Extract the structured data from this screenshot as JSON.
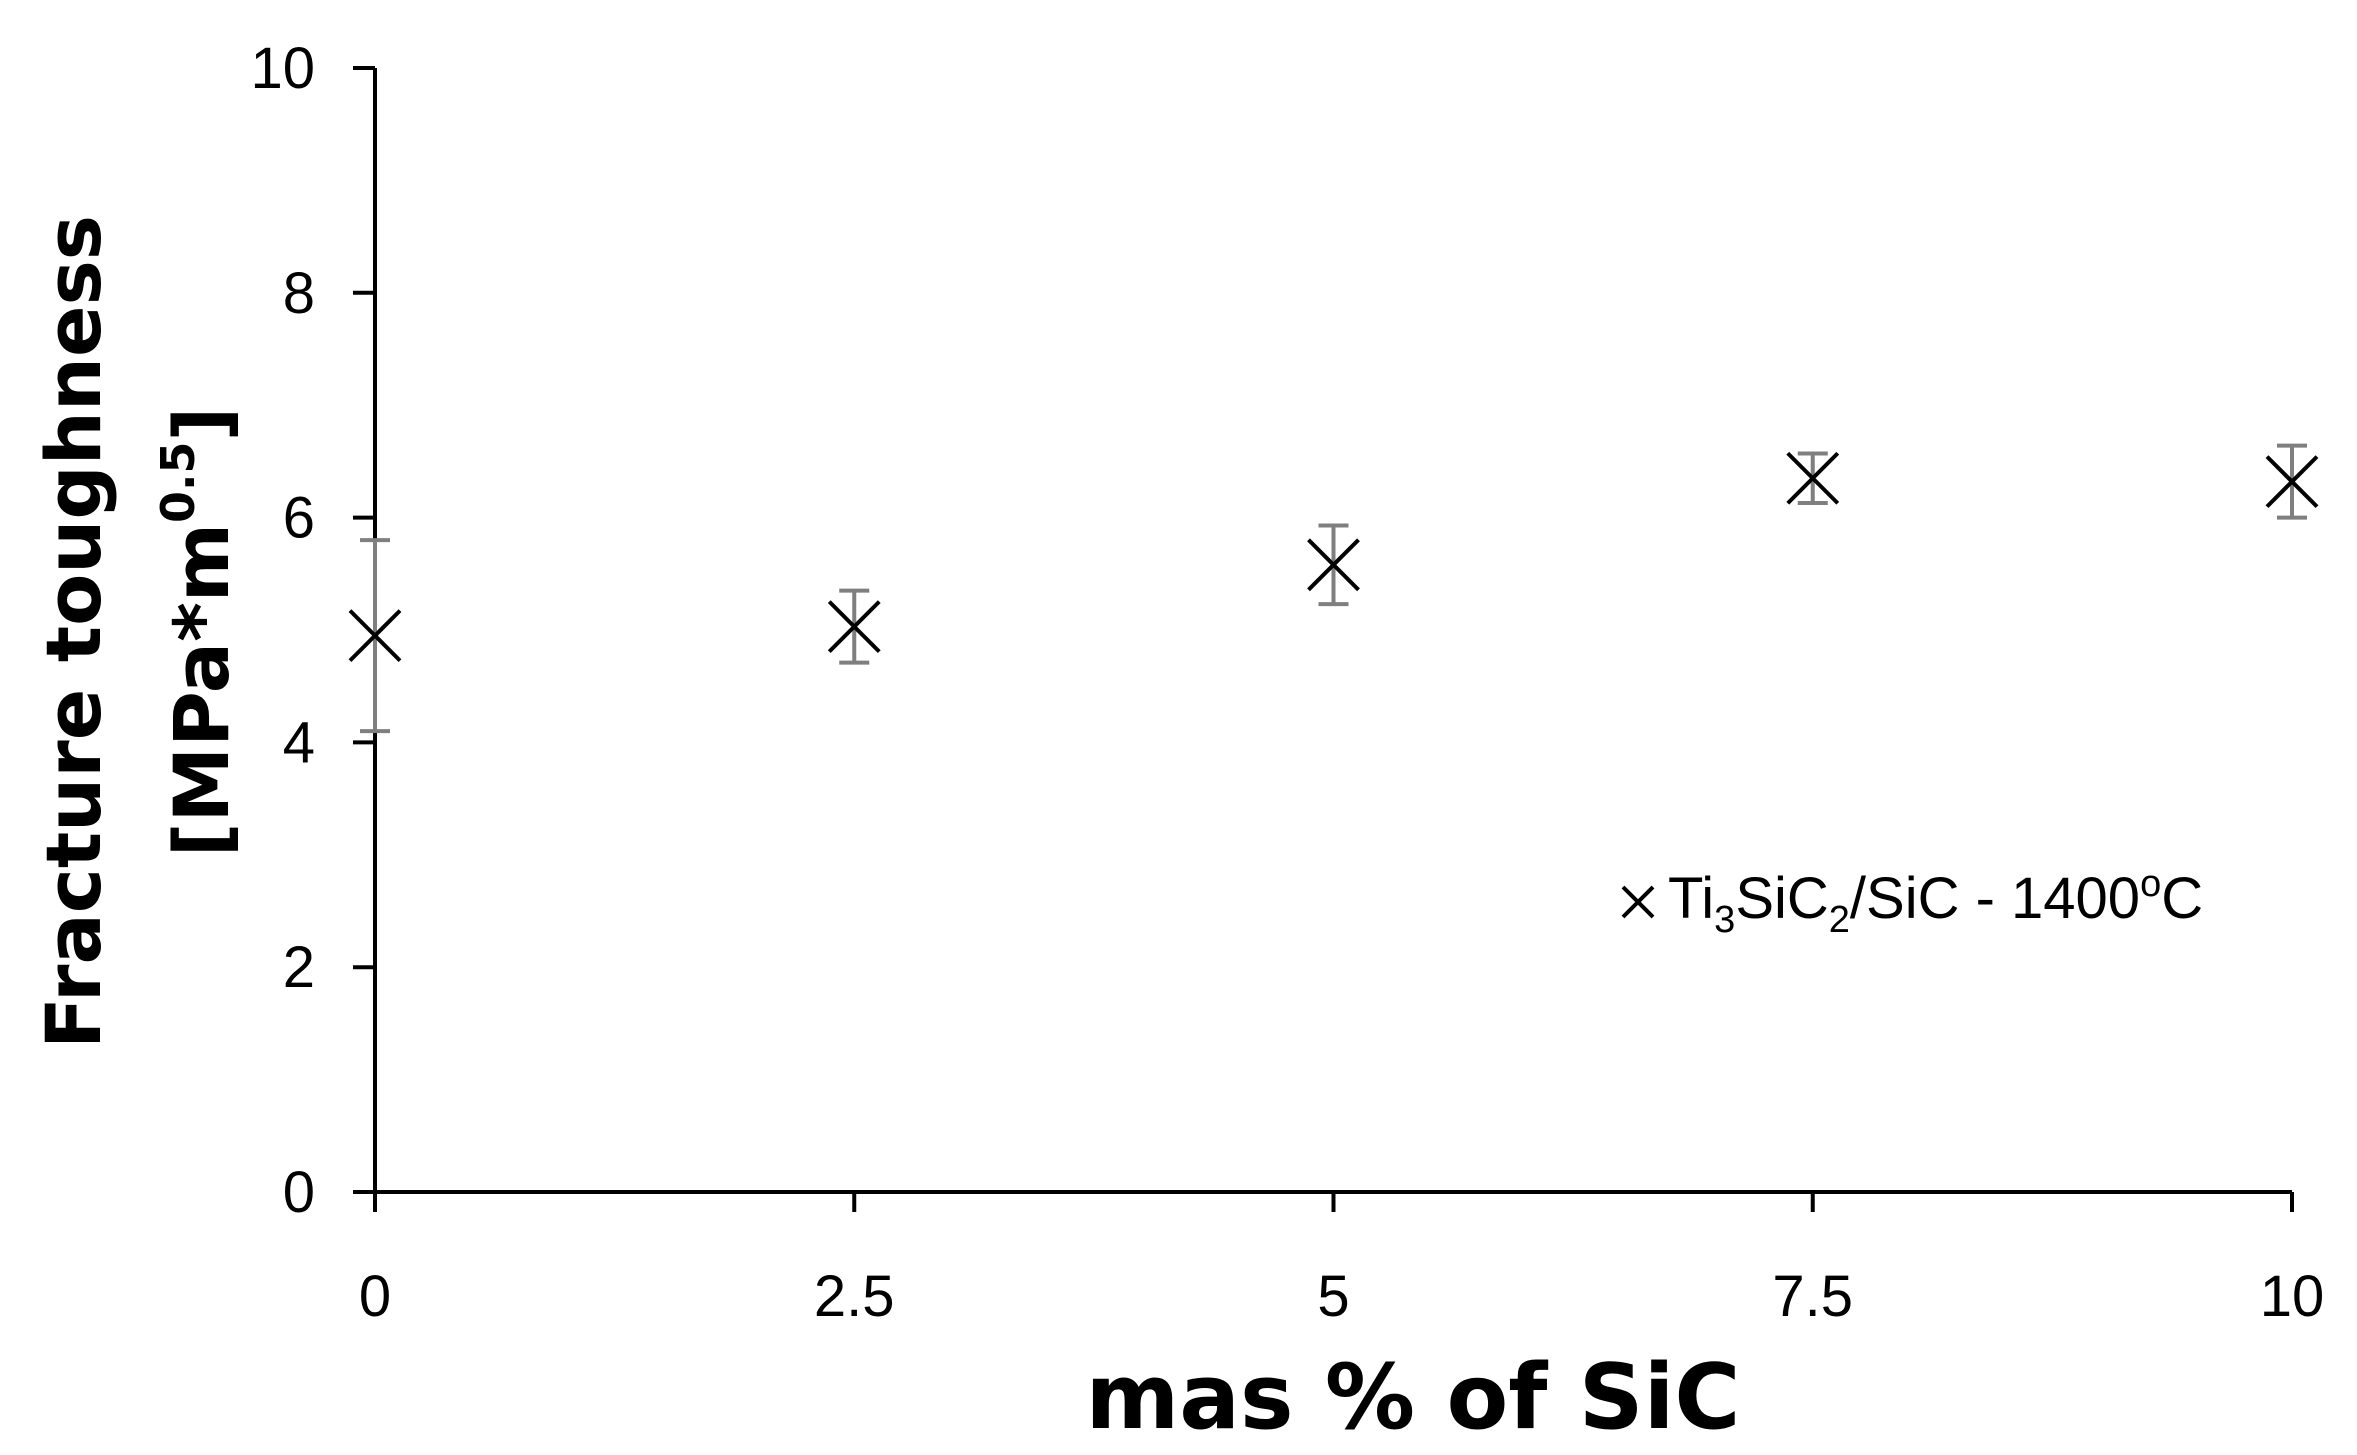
{
  "chart_data": {
    "type": "scatter",
    "xlabel": "mas % of SiC",
    "ylabel": {
      "line1": "Fracture toughness",
      "line2_pre": "[MPa*m",
      "line2_sup": "0.5",
      "line2_post": "]"
    },
    "xlim": [
      0,
      10
    ],
    "ylim": [
      0,
      10
    ],
    "x_ticks": [
      "0",
      "2.5",
      "5",
      "7.5",
      "10"
    ],
    "y_ticks": [
      "0",
      "2",
      "4",
      "6",
      "8",
      "10"
    ],
    "grid": false,
    "legend_position": "right-middle",
    "series": [
      {
        "name": {
          "parts": [
            "Ti",
            "3",
            "SiC",
            "2",
            "/SiC - 1400",
            "o",
            "C"
          ]
        },
        "marker": "x",
        "color": "#000000",
        "error_bar_color": "#7f7f7f",
        "x": [
          0,
          2.5,
          5,
          7.5,
          10
        ],
        "y": [
          4.95,
          5.03,
          5.58,
          6.35,
          6.32
        ],
        "error": [
          0.85,
          0.32,
          0.35,
          0.22,
          0.32
        ]
      }
    ]
  }
}
